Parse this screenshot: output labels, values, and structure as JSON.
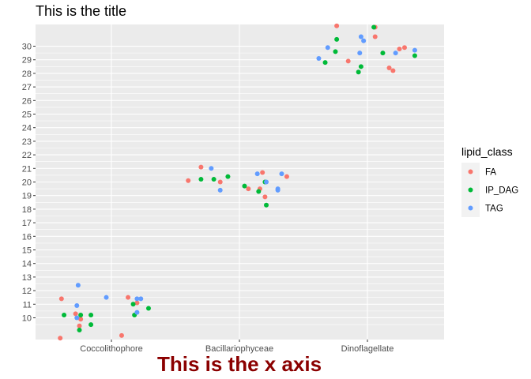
{
  "chart_data": {
    "type": "scatter",
    "title": "This is the title",
    "xlabel": "This is the x axis",
    "ylabel": "",
    "categories": [
      "Coccolithophore",
      "Bacillariophyceae",
      "Dinoflagellate"
    ],
    "y_ticks": [
      10,
      11,
      12,
      13,
      14,
      15,
      16,
      17,
      18,
      19,
      20,
      21,
      22,
      23,
      24,
      25,
      26,
      27,
      28,
      29,
      30
    ],
    "ylim": [
      8.4,
      31.6
    ],
    "grid": true,
    "legend": {
      "title": "lipid_class",
      "position": "right"
    },
    "series": [
      {
        "name": "FA",
        "color": "#F8766D",
        "points": [
          {
            "category": "Coccolithophore",
            "jitter": -0.39,
            "y": 11.4
          },
          {
            "category": "Coccolithophore",
            "jitter": -0.4,
            "y": 8.5
          },
          {
            "category": "Coccolithophore",
            "jitter": -0.28,
            "y": 10.3
          },
          {
            "category": "Coccolithophore",
            "jitter": -0.24,
            "y": 9.9
          },
          {
            "category": "Coccolithophore",
            "jitter": -0.25,
            "y": 9.4
          },
          {
            "category": "Coccolithophore",
            "jitter": 0.08,
            "y": 8.7
          },
          {
            "category": "Coccolithophore",
            "jitter": 0.13,
            "y": 11.5
          },
          {
            "category": "Coccolithophore",
            "jitter": 0.2,
            "y": 11.1
          },
          {
            "category": "Bacillariophyceae",
            "jitter": -0.4,
            "y": 20.1
          },
          {
            "category": "Bacillariophyceae",
            "jitter": -0.3,
            "y": 21.1
          },
          {
            "category": "Bacillariophyceae",
            "jitter": -0.15,
            "y": 20.0
          },
          {
            "category": "Bacillariophyceae",
            "jitter": 0.07,
            "y": 19.5
          },
          {
            "category": "Bacillariophyceae",
            "jitter": 0.16,
            "y": 19.5
          },
          {
            "category": "Bacillariophyceae",
            "jitter": 0.18,
            "y": 20.7
          },
          {
            "category": "Bacillariophyceae",
            "jitter": 0.2,
            "y": 18.9
          },
          {
            "category": "Bacillariophyceae",
            "jitter": 0.37,
            "y": 20.4
          },
          {
            "category": "Dinoflagellate",
            "jitter": -0.24,
            "y": 31.5
          },
          {
            "category": "Dinoflagellate",
            "jitter": -0.15,
            "y": 28.9
          },
          {
            "category": "Dinoflagellate",
            "jitter": 0.06,
            "y": 31.4
          },
          {
            "category": "Dinoflagellate",
            "jitter": 0.06,
            "y": 30.7
          },
          {
            "category": "Dinoflagellate",
            "jitter": 0.17,
            "y": 28.4
          },
          {
            "category": "Dinoflagellate",
            "jitter": 0.2,
            "y": 28.2
          },
          {
            "category": "Dinoflagellate",
            "jitter": 0.25,
            "y": 29.8
          },
          {
            "category": "Dinoflagellate",
            "jitter": 0.29,
            "y": 29.9
          }
        ]
      },
      {
        "name": "IP_DAG",
        "color": "#00BA38",
        "points": [
          {
            "category": "Coccolithophore",
            "jitter": -0.37,
            "y": 10.2
          },
          {
            "category": "Coccolithophore",
            "jitter": -0.24,
            "y": 10.2
          },
          {
            "category": "Coccolithophore",
            "jitter": -0.25,
            "y": 9.1
          },
          {
            "category": "Coccolithophore",
            "jitter": -0.16,
            "y": 10.2
          },
          {
            "category": "Coccolithophore",
            "jitter": -0.16,
            "y": 9.5
          },
          {
            "category": "Coccolithophore",
            "jitter": 0.17,
            "y": 11.0
          },
          {
            "category": "Coccolithophore",
            "jitter": 0.18,
            "y": 10.2
          },
          {
            "category": "Coccolithophore",
            "jitter": 0.29,
            "y": 10.7
          },
          {
            "category": "Bacillariophyceae",
            "jitter": -0.3,
            "y": 20.2
          },
          {
            "category": "Bacillariophyceae",
            "jitter": -0.2,
            "y": 20.2
          },
          {
            "category": "Bacillariophyceae",
            "jitter": -0.09,
            "y": 20.4
          },
          {
            "category": "Bacillariophyceae",
            "jitter": 0.04,
            "y": 19.7
          },
          {
            "category": "Bacillariophyceae",
            "jitter": 0.15,
            "y": 19.3
          },
          {
            "category": "Bacillariophyceae",
            "jitter": 0.2,
            "y": 20.0
          },
          {
            "category": "Bacillariophyceae",
            "jitter": 0.21,
            "y": 18.3
          },
          {
            "category": "Dinoflagellate",
            "jitter": -0.33,
            "y": 28.8
          },
          {
            "category": "Dinoflagellate",
            "jitter": -0.25,
            "y": 29.6
          },
          {
            "category": "Dinoflagellate",
            "jitter": -0.24,
            "y": 30.5
          },
          {
            "category": "Dinoflagellate",
            "jitter": -0.07,
            "y": 28.1
          },
          {
            "category": "Dinoflagellate",
            "jitter": -0.05,
            "y": 28.5
          },
          {
            "category": "Dinoflagellate",
            "jitter": 0.05,
            "y": 31.4
          },
          {
            "category": "Dinoflagellate",
            "jitter": 0.12,
            "y": 29.5
          },
          {
            "category": "Dinoflagellate",
            "jitter": 0.37,
            "y": 29.3
          }
        ]
      },
      {
        "name": "TAG",
        "color": "#619CFF",
        "points": [
          {
            "category": "Coccolithophore",
            "jitter": -0.26,
            "y": 12.4
          },
          {
            "category": "Coccolithophore",
            "jitter": -0.27,
            "y": 10.9
          },
          {
            "category": "Coccolithophore",
            "jitter": -0.27,
            "y": 10.0
          },
          {
            "category": "Coccolithophore",
            "jitter": -0.04,
            "y": 11.5
          },
          {
            "category": "Coccolithophore",
            "jitter": 0.2,
            "y": 11.4
          },
          {
            "category": "Coccolithophore",
            "jitter": 0.23,
            "y": 11.4
          },
          {
            "category": "Coccolithophore",
            "jitter": 0.2,
            "y": 10.4
          },
          {
            "category": "Bacillariophyceae",
            "jitter": -0.22,
            "y": 21.0
          },
          {
            "category": "Bacillariophyceae",
            "jitter": -0.15,
            "y": 19.4
          },
          {
            "category": "Bacillariophyceae",
            "jitter": 0.14,
            "y": 20.6
          },
          {
            "category": "Bacillariophyceae",
            "jitter": 0.21,
            "y": 20.0
          },
          {
            "category": "Bacillariophyceae",
            "jitter": 0.3,
            "y": 19.5
          },
          {
            "category": "Bacillariophyceae",
            "jitter": 0.3,
            "y": 19.4
          },
          {
            "category": "Bacillariophyceae",
            "jitter": 0.33,
            "y": 20.6
          },
          {
            "category": "Dinoflagellate",
            "jitter": -0.38,
            "y": 29.1
          },
          {
            "category": "Dinoflagellate",
            "jitter": -0.31,
            "y": 29.9
          },
          {
            "category": "Dinoflagellate",
            "jitter": -0.05,
            "y": 30.7
          },
          {
            "category": "Dinoflagellate",
            "jitter": -0.03,
            "y": 30.4
          },
          {
            "category": "Dinoflagellate",
            "jitter": -0.06,
            "y": 29.5
          },
          {
            "category": "Dinoflagellate",
            "jitter": 0.22,
            "y": 29.5
          },
          {
            "category": "Dinoflagellate",
            "jitter": 0.37,
            "y": 29.7
          }
        ]
      }
    ]
  },
  "colors": {
    "panel_background": "#EBEBEB",
    "grid_line": "#FFFFFF",
    "xlabel_color": "#8B0000"
  }
}
